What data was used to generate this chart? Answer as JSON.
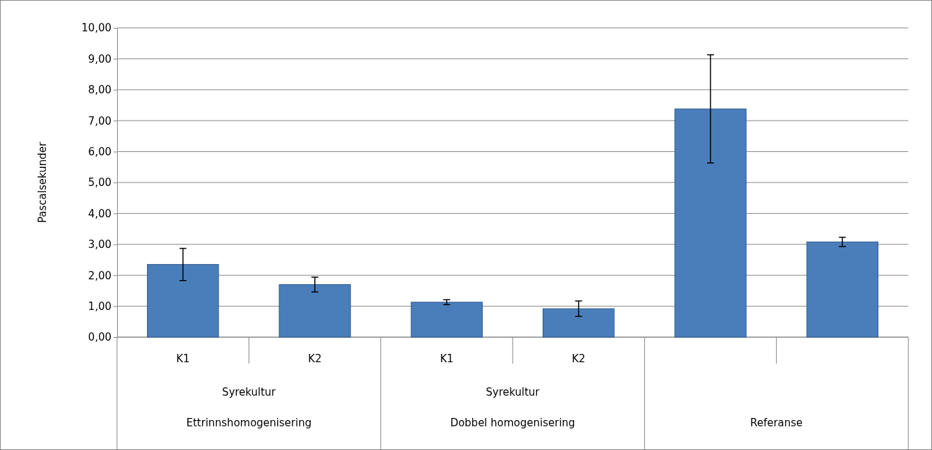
{
  "chart_data": {
    "type": "bar",
    "ylabel": "Pascalsekunder",
    "categories": [
      "K1",
      "K2",
      "K1",
      "K2",
      null,
      null
    ],
    "values": [
      2.35,
      1.7,
      1.13,
      0.92,
      7.38,
      3.08
    ],
    "errors": [
      0.52,
      0.24,
      0.08,
      0.25,
      1.75,
      0.15
    ],
    "color": "#4a7ebb",
    "ylim": [
      0,
      10
    ],
    "yticks": [
      {
        "value": 0,
        "label": "0,00"
      },
      {
        "value": 1,
        "label": "1,00"
      },
      {
        "value": 2,
        "label": "2,00"
      },
      {
        "value": 3,
        "label": "3,00"
      },
      {
        "value": 4,
        "label": "4,00"
      },
      {
        "value": 5,
        "label": "5,00"
      },
      {
        "value": 6,
        "label": "6,00"
      },
      {
        "value": 7,
        "label": "7,00"
      },
      {
        "value": 8,
        "label": "8,00"
      },
      {
        "value": 9,
        "label": "9,00"
      },
      {
        "value": 10,
        "label": "10,00"
      }
    ],
    "grid": "y",
    "annotations": [
      "Syrekultur",
      "Ettrinnshomogenisering",
      "Syrekultur",
      "Dobbel homogenisering",
      "Referanse"
    ]
  }
}
